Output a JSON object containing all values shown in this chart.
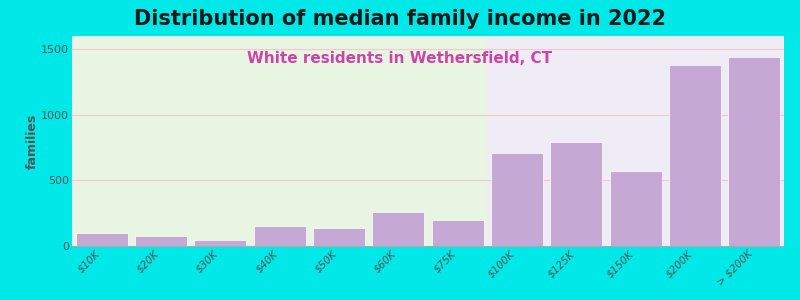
{
  "title": "Distribution of median family income in 2022",
  "subtitle": "White residents in Wethersfield, CT",
  "categories": [
    "$10K",
    "$20K",
    "$30K",
    "$40K",
    "$50K",
    "$60K",
    "$75K",
    "$100K",
    "$125K",
    "$150K",
    "$200K",
    "> $200K"
  ],
  "values": [
    100,
    75,
    45,
    155,
    140,
    260,
    195,
    710,
    790,
    575,
    1380,
    1440
  ],
  "bar_color": "#c5a8d4",
  "bar_edge_color": "white",
  "background_outer": "#00e8e8",
  "plot_bg_left": "#e8f5e2",
  "plot_bg_right": "#f0ecf5",
  "title_fontsize": 15,
  "subtitle_fontsize": 11,
  "subtitle_color": "#cc44aa",
  "ylabel": "families",
  "ylim": [
    0,
    1600
  ],
  "yticks": [
    0,
    500,
    1000,
    1500
  ],
  "grid_color": "#f5c8c8",
  "title_color": "#1a1a1a",
  "tick_label_color": "#555555",
  "split_index": 7,
  "bar_linewidth": 0.5
}
